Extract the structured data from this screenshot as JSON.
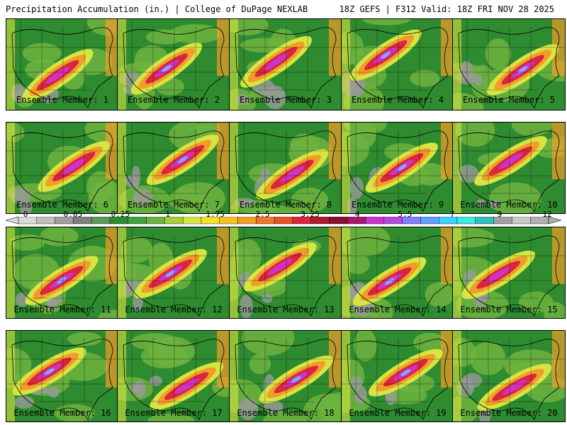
{
  "header": {
    "left_title": "Precipitation Accumulation (in.) | College of DuPage NEXLAB",
    "right_title": "18Z GEFS | F312 Valid: 18Z FRI NOV 28 2025"
  },
  "colors": {
    "background": "#ffffff",
    "map_green": "#2f8b2f",
    "map_light_green": "#6db33f",
    "map_yellow": "#d7e542",
    "map_orange": "#f39c2a",
    "map_red": "#d7263d",
    "map_magenta": "#cc33cc",
    "map_blue": "#7faaff",
    "map_gray": "#9a9a9a",
    "border_line": "#000000"
  },
  "colorbar": {
    "labels": [
      "0",
      "0.05",
      "0.25",
      "1",
      "1.75",
      "2.5",
      "3.25",
      "4",
      "5.5",
      "7",
      "9",
      "12"
    ],
    "colors": [
      "#d9d9d9",
      "#bfbfbf",
      "#9f9f9f",
      "#7f7f7f",
      "#5a9a5a",
      "#2f8b2f",
      "#3fa33f",
      "#6db33f",
      "#a8cf3a",
      "#d7e542",
      "#f0e12c",
      "#f3c12a",
      "#f39c2a",
      "#f0762a",
      "#e8522a",
      "#d7263d",
      "#b01c2e",
      "#8a1030",
      "#a8186a",
      "#cc33cc",
      "#b34bdc",
      "#7f7fff",
      "#5fa0ff",
      "#3fd0ff",
      "#3fe8e0",
      "#33bfbf",
      "#a0a0a0",
      "#c8c8c8",
      "#b0b0b0"
    ]
  },
  "members": [
    {
      "caption": "Ensemble Member: 1"
    },
    {
      "caption": "Ensemble Member: 2"
    },
    {
      "caption": "Ensemble Member: 3"
    },
    {
      "caption": "Ensemble Member: 4"
    },
    {
      "caption": "Ensemble Member: 5"
    },
    {
      "caption": "Ensemble Member: 6"
    },
    {
      "caption": "Ensemble Member: 7"
    },
    {
      "caption": "Ensemble Member: 8"
    },
    {
      "caption": "Ensemble Member: 9"
    },
    {
      "caption": "Ensemble Member: 10"
    },
    {
      "caption": "Ensemble Member: 11"
    },
    {
      "caption": "Ensemble Member: 12"
    },
    {
      "caption": "Ensemble Member: 13"
    },
    {
      "caption": "Ensemble Member: 14"
    },
    {
      "caption": "Ensemble Member: 15"
    },
    {
      "caption": "Ensemble Member: 16"
    },
    {
      "caption": "Ensemble Member: 17"
    },
    {
      "caption": "Ensemble Member: 18"
    },
    {
      "caption": "Ensemble Member: 19"
    },
    {
      "caption": "Ensemble Member: 20"
    }
  ]
}
